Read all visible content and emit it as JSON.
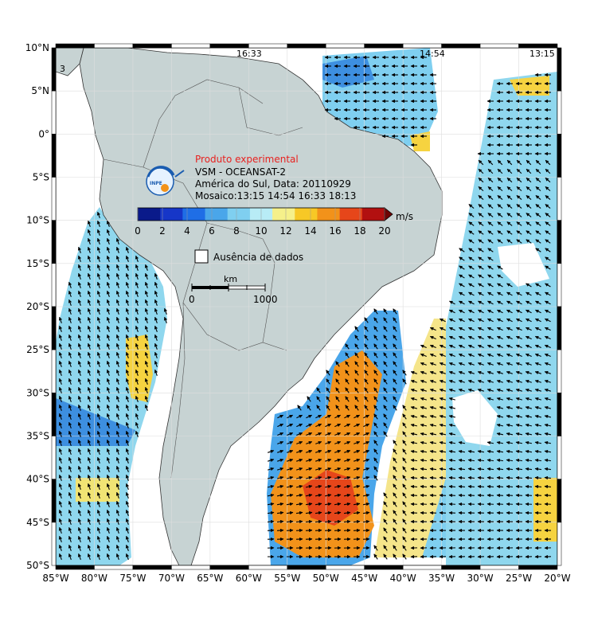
{
  "map": {
    "pass_times": [
      "16:33",
      "14:54",
      "13:15"
    ],
    "corner_label": "3",
    "lat_labels": [
      "10°N",
      "5°N",
      "0°",
      "5°S",
      "10°S",
      "15°S",
      "20°S",
      "25°S",
      "30°S",
      "35°S",
      "40°S",
      "45°S",
      "50°S"
    ],
    "lon_labels": [
      "85°W",
      "80°W",
      "75°W",
      "70°W",
      "65°W",
      "60°W",
      "55°W",
      "50°W",
      "45°W",
      "40°W",
      "35°W",
      "30°W",
      "25°W",
      "20°W"
    ],
    "lat_range": [
      -50,
      10
    ],
    "lon_range": [
      -85,
      -20
    ],
    "colors": {
      "land": "#c7d3d3",
      "ocean_nodata": "#ffffff",
      "grid": "#dddddd"
    }
  },
  "legend": {
    "product_label": "Produto experimental",
    "product_label_color": "#e8211f",
    "satellite": "VSM - OCEANSAT-2",
    "region_date": "América do Sul, Data: 20110929",
    "mosaic": "Mosaico:13:15 14:54 16:33 18:13",
    "logo_text": "INPE",
    "logo_icon": "inpe-logo-icon",
    "colorbar_unit": "m/s",
    "colorbar_ticks": [
      "0",
      "2",
      "4",
      "6",
      "8",
      "10",
      "12",
      "14",
      "16",
      "18",
      "20"
    ],
    "colorbar_colors": [
      "#0a1a8a",
      "#1636c8",
      "#1f6ee6",
      "#4aa6ea",
      "#7fcff0",
      "#b8ecf6",
      "#f5f08a",
      "#f7c826",
      "#f2921a",
      "#e6461a",
      "#b21010",
      "#6e0505"
    ],
    "nodata_label": "Ausência de dados",
    "scale_unit": "km",
    "scale_ticks": [
      "0",
      "1000"
    ]
  },
  "wind_field": [
    {
      "region": "north-atlantic-equatorial",
      "speed_range_ms": [
        4,
        14
      ],
      "direction": "west"
    },
    {
      "region": "east-pacific-chile-coast",
      "speed_range_ms": [
        4,
        13
      ],
      "direction": "north-northwest"
    },
    {
      "region": "south-atlantic-argentina",
      "speed_range_ms": [
        6,
        17
      ],
      "direction": "east-northeast"
    },
    {
      "region": "central-south-atlantic",
      "speed_range_ms": [
        4,
        12
      ],
      "direction": "northwest"
    }
  ]
}
